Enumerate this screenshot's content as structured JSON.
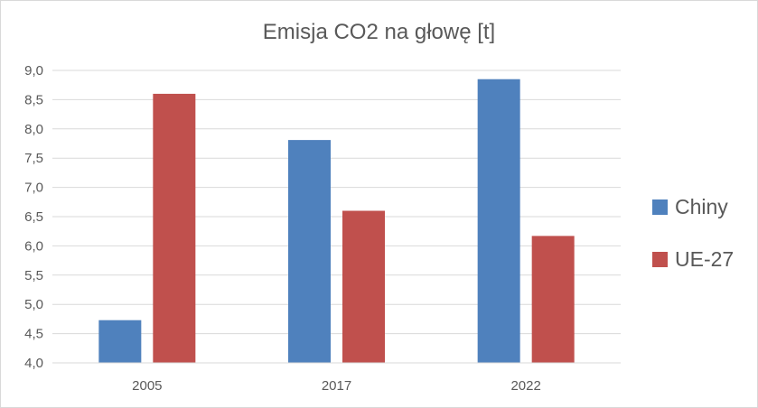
{
  "chart_data": {
    "type": "bar",
    "title": "Emisja CO2 na głowę [t]",
    "xlabel": "",
    "ylabel": "",
    "categories": [
      "2005",
      "2017",
      "2022"
    ],
    "series": [
      {
        "name": "Chiny",
        "color": "#4f81bd",
        "values": [
          4.73,
          7.81,
          8.85
        ]
      },
      {
        "name": "UE-27",
        "color": "#c0504d",
        "values": [
          8.6,
          6.6,
          6.17
        ]
      }
    ],
    "ylim": [
      4.0,
      9.0
    ],
    "yticks": [
      "4,0",
      "4,5",
      "5,0",
      "5,5",
      "6,0",
      "6,5",
      "7,0",
      "7,5",
      "8,0",
      "8,5",
      "9,0"
    ],
    "grid": true,
    "legend": "right"
  }
}
